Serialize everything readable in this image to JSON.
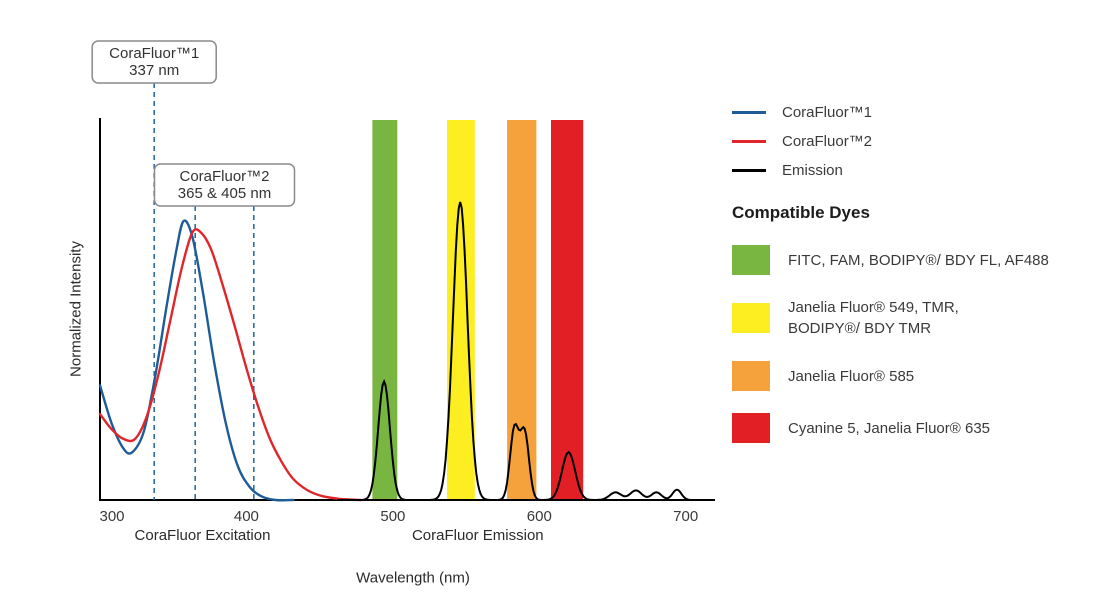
{
  "chart_data": {
    "type": "line",
    "title": "",
    "xlabel": "Wavelength (nm)",
    "ylabel": "Normalized Intensity",
    "xlim": [
      300,
      720
    ],
    "ylim": [
      0,
      1
    ],
    "x_ticks": [
      300,
      400,
      500,
      600,
      700
    ],
    "grid": false,
    "legend_position": "right",
    "axis_section_labels": [
      {
        "label": "CoraFluor Excitation",
        "center_nm": 370
      },
      {
        "label": "CoraFluor Emission",
        "center_nm": 558
      }
    ],
    "dashed_line_color": "#2e6da4",
    "series": [
      {
        "name": "CoraFluor™1",
        "color": "#1e5c97",
        "points": [
          [
            300,
            0.3
          ],
          [
            308,
            0.2
          ],
          [
            316,
            0.135
          ],
          [
            322,
            0.125
          ],
          [
            330,
            0.18
          ],
          [
            338,
            0.33
          ],
          [
            346,
            0.52
          ],
          [
            352,
            0.65
          ],
          [
            357,
            0.73
          ],
          [
            363,
            0.69
          ],
          [
            370,
            0.55
          ],
          [
            378,
            0.36
          ],
          [
            386,
            0.2
          ],
          [
            394,
            0.09
          ],
          [
            402,
            0.035
          ],
          [
            410,
            0.01
          ],
          [
            420,
            0.0
          ],
          [
            432,
            0.0
          ]
        ]
      },
      {
        "name": "CoraFluor™2",
        "color": "#e0262a",
        "points": [
          [
            300,
            0.225
          ],
          [
            308,
            0.185
          ],
          [
            316,
            0.16
          ],
          [
            324,
            0.16
          ],
          [
            332,
            0.22
          ],
          [
            340,
            0.33
          ],
          [
            348,
            0.47
          ],
          [
            356,
            0.61
          ],
          [
            363,
            0.7
          ],
          [
            369,
            0.7
          ],
          [
            376,
            0.655
          ],
          [
            384,
            0.56
          ],
          [
            392,
            0.455
          ],
          [
            400,
            0.345
          ],
          [
            408,
            0.245
          ],
          [
            416,
            0.16
          ],
          [
            424,
            0.1
          ],
          [
            432,
            0.055
          ],
          [
            442,
            0.025
          ],
          [
            452,
            0.01
          ],
          [
            464,
            0.003
          ],
          [
            478,
            0.0
          ]
        ]
      }
    ],
    "emission": {
      "name": "Emission",
      "color": "#000000",
      "peaks": [
        {
          "center": 494,
          "height": 0.31,
          "width": 4
        },
        {
          "center": 546,
          "height": 0.78,
          "width": 5
        },
        {
          "center": 583,
          "height": 0.185,
          "width": 3
        },
        {
          "center": 590,
          "height": 0.175,
          "width": 3
        },
        {
          "center": 620,
          "height": 0.125,
          "width": 4.5
        },
        {
          "center": 652,
          "height": 0.02,
          "width": 4
        },
        {
          "center": 666,
          "height": 0.025,
          "width": 4
        },
        {
          "center": 680,
          "height": 0.02,
          "width": 3.5
        },
        {
          "center": 694,
          "height": 0.027,
          "width": 3
        }
      ]
    },
    "filter_bands": [
      {
        "name": "green",
        "color": "#79b541",
        "from": 486,
        "to": 503
      },
      {
        "name": "yellow",
        "color": "#fcee21",
        "from": 537,
        "to": 556
      },
      {
        "name": "orange",
        "color": "#f5a23d",
        "from": 578,
        "to": 598
      },
      {
        "name": "red",
        "color": "#e31f26",
        "from": 608,
        "to": 630
      }
    ],
    "annotations": [
      {
        "title": "CoraFluor™1",
        "subtitle": "337 nm",
        "lines_nm": [
          337
        ]
      },
      {
        "title": "CoraFluor™2",
        "subtitle": "365 & 405 nm",
        "lines_nm": [
          365,
          405
        ]
      }
    ]
  },
  "legend": {
    "series": [
      {
        "label": "CoraFluor™1",
        "color": "#1e5c97"
      },
      {
        "label": "CoraFluor™2",
        "color": "#e0262a"
      },
      {
        "label": "Emission",
        "color": "#000000"
      }
    ],
    "dyes_heading": "Compatible Dyes",
    "dyes": [
      {
        "label": "FITC, FAM, BODIPY®/ BDY FL, AF488",
        "color": "#79b541"
      },
      {
        "label": "Janelia Fluor® 549, TMR,\nBODIPY®/ BDY TMR",
        "color": "#fcee21"
      },
      {
        "label": "Janelia Fluor® 585",
        "color": "#f5a23d"
      },
      {
        "label": "Cyanine 5, Janelia Fluor® 635",
        "color": "#e31f26"
      }
    ]
  }
}
